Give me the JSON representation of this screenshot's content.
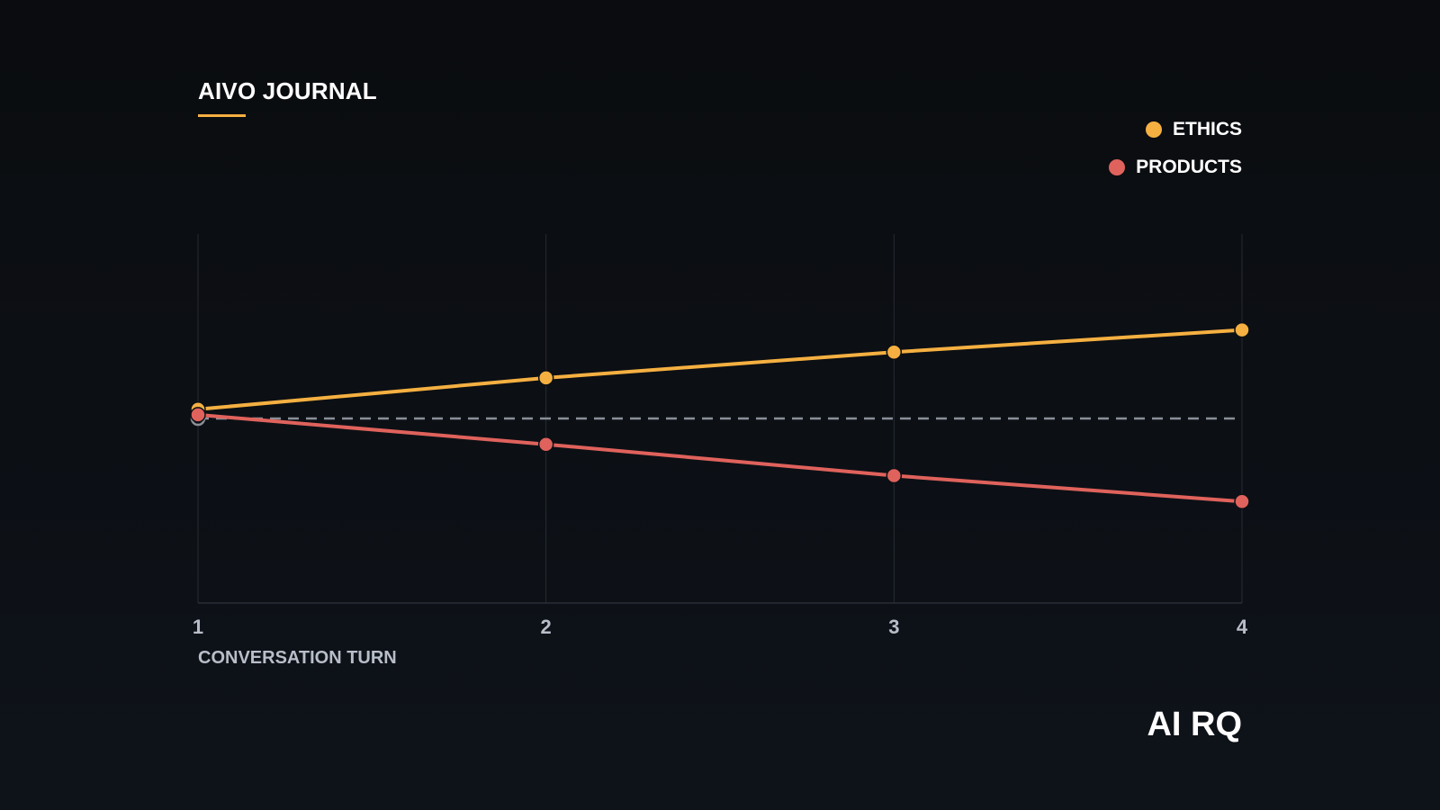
{
  "brand": {
    "title": "AIVO JOURNAL",
    "accent": "#f5b041"
  },
  "watermark": "AI RQ",
  "chart_data": {
    "type": "line",
    "title": "",
    "xlabel": "CONVERSATION TURN",
    "ylabel": "",
    "x": [
      1,
      2,
      3,
      4
    ],
    "ylim": [
      -1,
      1
    ],
    "baseline": 0,
    "grid": "vertical",
    "legend_position": "top-right",
    "series": [
      {
        "name": "ETHICS",
        "color": "#f5b041",
        "values": [
          0.05,
          0.22,
          0.36,
          0.48
        ]
      },
      {
        "name": "PRODUCTS",
        "color": "#e0625c",
        "values": [
          0.02,
          -0.14,
          -0.31,
          -0.45
        ]
      }
    ],
    "baseline_color": "#8a8f98"
  }
}
